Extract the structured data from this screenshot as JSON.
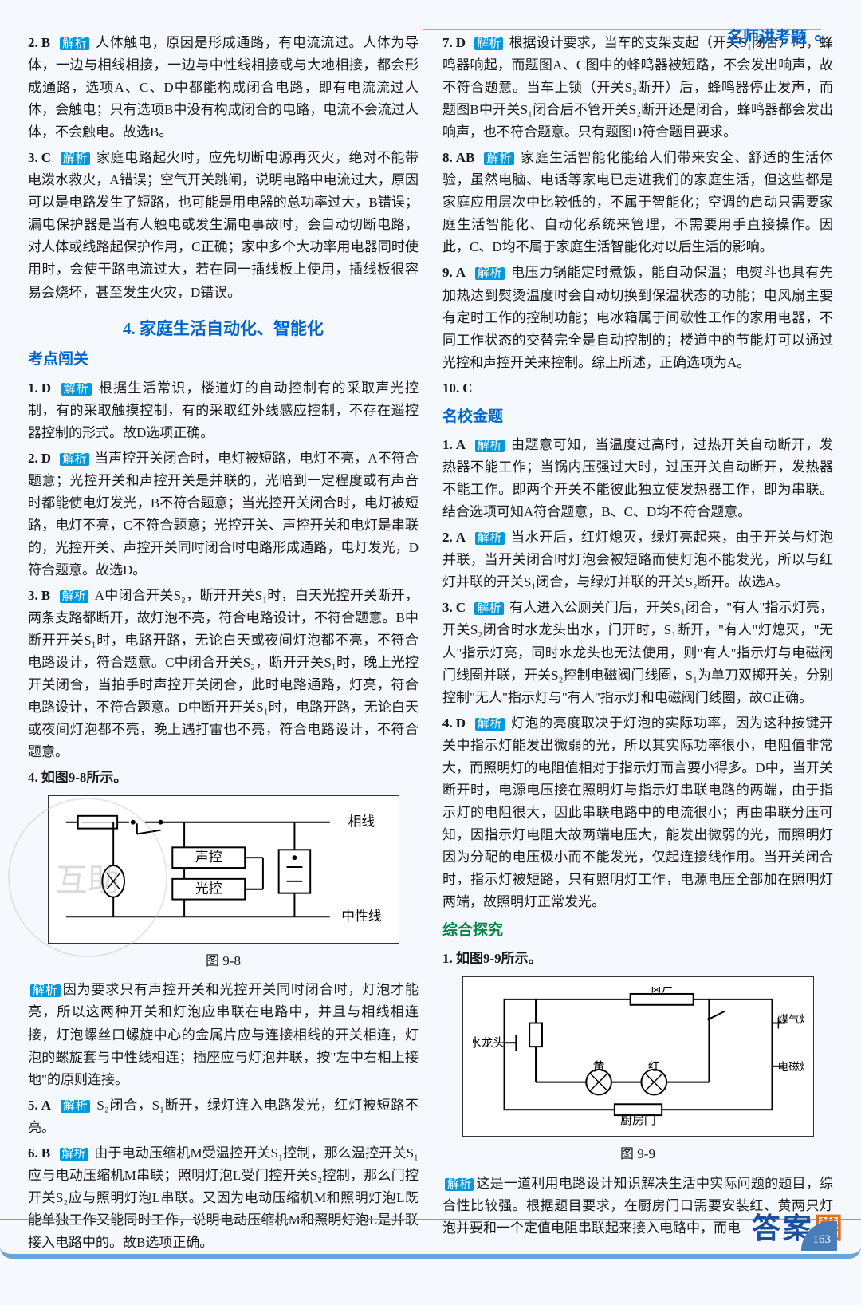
{
  "header": {
    "title": "名师讲考题"
  },
  "page_number": "163",
  "watermark_br": [
    "答",
    "案",
    "圈"
  ],
  "left": {
    "items": [
      {
        "num": "2.",
        "ans": "B",
        "text": "人体触电，原因是形成通路，有电流流过。人体为导体，一边与相线相接，一边与中性线相接或与大地相接，都会形成通路，选项A、C、D中都能构成闭合电路，即有电流流过人体，会触电；只有选项B中没有构成闭合的电路，电流不会流过人体，不会触电。故选B。"
      },
      {
        "num": "3.",
        "ans": "C",
        "text": "家庭电路起火时，应先切断电源再灭火，绝对不能带电泼水救火，A错误；空气开关跳闸，说明电路中电流过大，原因可以是电路发生了短路，也可能是用电器的总功率过大，B错误；漏电保护器是当有人触电或发生漏电事故时，会自动切断电路，对人体或线路起保护作用，C正确；家中多个大功率用电器同时使用时，会使干路电流过大，若在同一插线板上使用，插线板很容易会烧坏，甚至发生火灾，D错误。"
      }
    ],
    "section4": {
      "title": "4. 家庭生活自动化、智能化",
      "sub": "考点闯关",
      "items": [
        {
          "num": "1.",
          "ans": "D",
          "text": "根据生活常识，楼道灯的自动控制有的采取声光控制，有的采取触摸控制，有的采取红外线感应控制，不存在遥控器控制的形式。故D选项正确。"
        },
        {
          "num": "2.",
          "ans": "D",
          "text": "当声控开关闭合时，电灯被短路，电灯不亮，A不符合题意；光控开关和声控开关是并联的，光暗到一定程度或有声音时都能使电灯发光，B不符合题意；当光控开关闭合时，电灯被短路，电灯不亮，C不符合题意；光控开关、声控开关和电灯是串联的，光控开关、声控开关同时闭合时电路形成通路，电灯发光，D符合题意。故选D。"
        },
        {
          "num": "3.",
          "ans": "B",
          "text": "A中闭合开关S₂，断开开关S₁时，白天光控开关断开，两条支路都断开，故灯泡不亮，符合电路设计，不符合题意。B中断开开关S₁时，电路开路，无论白天或夜间灯泡都不亮，不符合电路设计，符合题意。C中闭合开关S₂，断开开关S₁时，晚上光控开关闭合，当拍手时声控开关闭合，此时电路通路，灯亮，符合电路设计，不符合题意。D中断开开关S₁时，电路开路，无论白天或夜间灯泡都不亮，晚上遇打雷也不亮，符合电路设计，不符合题意。"
        },
        {
          "num": "4.",
          "ans": "如图9-8所示。",
          "text": ""
        }
      ],
      "diagram1_caption": "图 9-8",
      "diagram1_labels": {
        "top": "相线",
        "bot": "中性线",
        "sound": "声控",
        "light": "光控"
      },
      "after_diagram": "因为要求只有声控开关和光控开关同时闭合时，灯泡才能亮，所以这两种开关和灯泡应串联在电路中，并且与相线相连接，灯泡螺丝口螺旋中心的金属片应与连接相线的开关相连，灯泡的螺旋套与中性线相连；插座应与灯泡并联，按\"左中右相上接地\"的原则连接。",
      "items2": [
        {
          "num": "5.",
          "ans": "A",
          "text": "S₂闭合，S₁断开，绿灯连入电路发光，红灯被短路不亮。"
        },
        {
          "num": "6.",
          "ans": "B",
          "text": "由于电动压缩机M受温控开关S₁控制，那么温控开关S₁应与电动压缩机M串联；照明灯泡L受门控开关S₂控制，那么门控开关S₂应与照明灯泡L串联。又因为电动压缩机M和照明灯泡L既能单独工作又能同时工作，说明电动压缩机M和照明灯泡L是并联接入电路中的。故B选项正确。"
        }
      ]
    }
  },
  "right": {
    "items": [
      {
        "num": "7.",
        "ans": "D",
        "text": "根据设计要求，当车的支架支起（开关S₁闭合）时，蜂鸣器响起，而题图A、C图中的蜂鸣器被短路，不会发出响声，故不符合题意。当车上锁（开关S₂断开）后，蜂鸣器停止发声，而题图B中开关S₁闭合后不管开关S₂断开还是闭合，蜂鸣器都会发出响声，也不符合题意。只有题图D符合题目要求。"
      },
      {
        "num": "8.",
        "ans": "AB",
        "text": "家庭生活智能化能给人们带来安全、舒适的生活体验，虽然电脑、电话等家电已走进我们的家庭生活，但这些都是家庭应用层次中比较低的，不属于智能化；空调的启动只需要家庭生活智能化、自动化系统来管理，不需要用手直接操作。因此，C、D均不属于家庭生活智能化对以后生活的影响。"
      },
      {
        "num": "9.",
        "ans": "A",
        "text": "电压力锅能定时煮饭，能自动保温；电熨斗也具有先加热达到熨烫温度时会自动切换到保温状态的功能；电风扇主要有定时工作的控制功能；电冰箱属于间歇性工作的家用电器，不同工作状态的交替完全是自动控制的；楼道中的节能灯可以通过光控和声控开关来控制。综上所述，正确选项为A。"
      },
      {
        "num": "10.",
        "ans": "C",
        "text": ""
      }
    ],
    "mingxiao": {
      "title": "名校金题",
      "items": [
        {
          "num": "1.",
          "ans": "A",
          "text": "由题意可知，当温度过高时，过热开关自动断开，发热器不能工作；当锅内压强过大时，过压开关自动断开，发热器不能工作。即两个开关不能彼此独立使发热器工作，即为串联。结合选项可知A符合题意，B、C、D均不符合题意。"
        },
        {
          "num": "2.",
          "ans": "A",
          "text": "当水开后，红灯熄灭，绿灯亮起来，由于开关与灯泡并联，当开关闭合时灯泡会被短路而使灯泡不能发光，所以与红灯并联的开关S₁闭合，与绿灯并联的开关S₂断开。故选A。"
        },
        {
          "num": "3.",
          "ans": "C",
          "text": "有人进入公厕关门后，开关S₁闭合，\"有人\"指示灯亮，开关S₂闭合时水龙头出水，门开时，S₁断开，\"有人\"灯熄灭，\"无人\"指示灯亮，同时水龙头也无法使用，则\"有人\"指示灯与电磁阀门线圈并联，开关S₂控制电磁阀门线圈，S₁为单刀双掷开关，分别控制\"无人\"指示灯与\"有人\"指示灯和电磁阀门线圈，故C正确。"
        },
        {
          "num": "4.",
          "ans": "D",
          "text": "灯泡的亮度取决于灯泡的实际功率，因为这种按键开关中指示灯能发出微弱的光，所以其实际功率很小，电阻值非常大，而照明灯的电阻值相对于指示灯而言要小得多。D中，当开关断开时，电源电压接在照明灯与指示灯串联电路的两端，由于指示灯的电阻很大，因此串联电路中的电流很小；再由串联分压可知，因指示灯电阻大故两端电压大，能发出微弱的光，而照明灯因为分配的电压极小而不能发光，仅起连接线作用。当开关闭合时，指示灯被短路，只有照明灯工作，电源电压全部加在照明灯两端，故照明灯正常发光。"
        }
      ]
    },
    "zonghe": {
      "title": "综合探究",
      "item1": "1. 如图9-9所示。",
      "diagram_caption": "图 9-9",
      "diagram_labels": {
        "window": "窗户",
        "faucet": "水龙头",
        "yellow": "黄",
        "red": "红",
        "stove": "煤气灶",
        "emstove": "电磁炉",
        "door": "厨房门"
      },
      "after": "这是一道利用电路设计知识解决生活中实际问题的题目，综合性比较强。根据题目要求，在厨房门口需要安装红、黄两只灯泡并要和一个定值电阻串联起来接入电路中，而电"
    }
  }
}
